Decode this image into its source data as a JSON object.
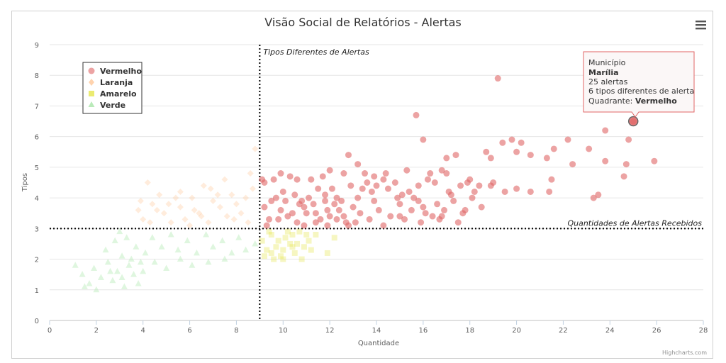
{
  "chart_data": {
    "type": "scatter",
    "title": "Visão Social de Relatórios - Alertas",
    "xlabel": "Quantidade",
    "ylabel": "Tipos",
    "xlim": [
      0,
      28
    ],
    "ylim": [
      0,
      9
    ],
    "x_ticks": [
      "0",
      "2",
      "4",
      "6",
      "8",
      "10",
      "12",
      "14",
      "16",
      "18",
      "20",
      "22",
      "24",
      "26",
      "28"
    ],
    "y_ticks": [
      "0",
      "1",
      "2",
      "3",
      "4",
      "5",
      "6",
      "7",
      "8",
      "9"
    ],
    "grid": "horizontal",
    "legend_position": "top-left",
    "plot_lines": [
      {
        "axis": "x",
        "value": 9,
        "label": "Tipos Diferentes de Alertas"
      },
      {
        "axis": "y",
        "value": 3,
        "label": "Quantidades de Alertas Recebidos"
      }
    ],
    "series": [
      {
        "name": "Vermelho",
        "color": "#e06666",
        "marker": "circle",
        "points": [
          [
            9.1,
            4.6
          ],
          [
            9.2,
            4.5
          ],
          [
            9.6,
            4.6
          ],
          [
            9.9,
            4.8
          ],
          [
            10.3,
            4.7
          ],
          [
            10.6,
            4.6
          ],
          [
            11.2,
            4.6
          ],
          [
            11.7,
            4.7
          ],
          [
            12.0,
            4.9
          ],
          [
            12.6,
            4.8
          ],
          [
            12.8,
            5.4
          ],
          [
            13.2,
            5.1
          ],
          [
            13.5,
            4.8
          ],
          [
            13.9,
            4.7
          ],
          [
            14.4,
            4.8
          ],
          [
            15.3,
            4.9
          ],
          [
            15.7,
            6.7
          ],
          [
            15.8,
            4.4
          ],
          [
            16.0,
            5.9
          ],
          [
            16.3,
            4.8
          ],
          [
            16.8,
            4.9
          ],
          [
            17.0,
            5.3
          ],
          [
            17.4,
            5.4
          ],
          [
            17.9,
            4.5
          ],
          [
            18.7,
            5.5
          ],
          [
            18.9,
            5.3
          ],
          [
            19.2,
            7.9
          ],
          [
            19.4,
            5.8
          ],
          [
            19.8,
            5.9
          ],
          [
            20.0,
            5.5
          ],
          [
            20.2,
            5.8
          ],
          [
            20.6,
            5.4
          ],
          [
            21.3,
            5.3
          ],
          [
            21.6,
            5.6
          ],
          [
            22.2,
            5.9
          ],
          [
            22.4,
            5.1
          ],
          [
            23.1,
            5.6
          ],
          [
            23.8,
            6.2
          ],
          [
            23.8,
            5.2
          ],
          [
            24.7,
            5.1
          ],
          [
            24.8,
            5.9
          ],
          [
            25.0,
            6.5
          ],
          [
            25.9,
            5.2
          ],
          [
            24.6,
            4.7
          ],
          [
            23.5,
            4.1
          ],
          [
            23.3,
            4.0
          ],
          [
            21.5,
            4.6
          ],
          [
            21.4,
            4.2
          ],
          [
            20.6,
            4.2
          ],
          [
            20.0,
            4.3
          ],
          [
            19.5,
            4.2
          ],
          [
            18.9,
            4.4
          ],
          [
            18.2,
            4.2
          ],
          [
            17.6,
            4.4
          ],
          [
            17.2,
            4.1
          ],
          [
            16.6,
            3.8
          ],
          [
            16.1,
            3.5
          ],
          [
            15.5,
            3.6
          ],
          [
            15.0,
            3.4
          ],
          [
            14.3,
            3.1
          ],
          [
            13.7,
            3.3
          ],
          [
            13.3,
            3.5
          ],
          [
            12.8,
            3.1
          ],
          [
            12.3,
            3.3
          ],
          [
            11.9,
            3.6
          ],
          [
            11.4,
            3.2
          ],
          [
            10.9,
            3.7
          ],
          [
            10.6,
            3.2
          ],
          [
            10.2,
            3.4
          ],
          [
            9.8,
            3.3
          ],
          [
            9.4,
            3.3
          ],
          [
            9.2,
            3.7
          ],
          [
            9.5,
            3.9
          ],
          [
            10.0,
            4.2
          ],
          [
            10.4,
            3.5
          ],
          [
            10.8,
            3.9
          ],
          [
            11.1,
            4.0
          ],
          [
            11.5,
            4.3
          ],
          [
            11.8,
            4.1
          ],
          [
            12.2,
            3.8
          ],
          [
            12.5,
            3.9
          ],
          [
            12.9,
            4.4
          ],
          [
            13.4,
            4.3
          ],
          [
            13.8,
            4.2
          ],
          [
            14.1,
            3.6
          ],
          [
            14.6,
            3.4
          ],
          [
            15.0,
            3.8
          ],
          [
            15.4,
            4.2
          ],
          [
            15.9,
            3.2
          ],
          [
            16.4,
            3.4
          ],
          [
            16.9,
            3.6
          ],
          [
            17.3,
            3.9
          ],
          [
            17.7,
            3.5
          ],
          [
            18.1,
            4.0
          ],
          [
            18.5,
            3.7
          ],
          [
            11.0,
            3.5
          ],
          [
            11.3,
            3.8
          ],
          [
            11.6,
            3.3
          ],
          [
            12.1,
            4.3
          ],
          [
            12.4,
            3.6
          ],
          [
            12.7,
            3.2
          ],
          [
            13.0,
            3.7
          ],
          [
            13.6,
            4.5
          ],
          [
            14.0,
            4.4
          ],
          [
            14.8,
            4.5
          ],
          [
            15.2,
            3.3
          ],
          [
            15.6,
            4.0
          ],
          [
            16.2,
            4.6
          ],
          [
            16.7,
            3.3
          ],
          [
            17.1,
            4.2
          ],
          [
            17.5,
            3.2
          ],
          [
            18.0,
            4.6
          ],
          [
            18.4,
            4.4
          ],
          [
            19.0,
            4.5
          ],
          [
            9.7,
            4.0
          ],
          [
            10.1,
            3.9
          ],
          [
            10.5,
            4.1
          ],
          [
            10.7,
            3.8
          ],
          [
            11.9,
            3.1
          ],
          [
            12.0,
            3.4
          ],
          [
            12.3,
            4.0
          ],
          [
            13.1,
            3.2
          ],
          [
            13.9,
            3.9
          ],
          [
            14.3,
            4.6
          ],
          [
            14.9,
            4.0
          ],
          [
            15.8,
            3.9
          ],
          [
            16.5,
            4.5
          ],
          [
            17.0,
            4.8
          ],
          [
            17.8,
            3.6
          ],
          [
            9.3,
            3.1
          ],
          [
            9.9,
            3.6
          ],
          [
            10.9,
            3.1
          ],
          [
            11.4,
            3.5
          ],
          [
            11.8,
            3.9
          ],
          [
            12.6,
            3.4
          ],
          [
            13.2,
            4.0
          ],
          [
            14.5,
            4.3
          ],
          [
            15.1,
            4.1
          ],
          [
            16.0,
            3.7
          ],
          [
            16.8,
            3.4
          ]
        ]
      },
      {
        "name": "Laranja",
        "color": "#ffc89a",
        "marker": "diamond",
        "points": [
          [
            3.9,
            3.9
          ],
          [
            4.2,
            4.5
          ],
          [
            4.6,
            3.6
          ],
          [
            5.1,
            3.8
          ],
          [
            5.6,
            4.2
          ],
          [
            6.1,
            4.0
          ],
          [
            6.5,
            3.4
          ],
          [
            6.9,
            4.3
          ],
          [
            7.3,
            3.7
          ],
          [
            7.8,
            4.1
          ],
          [
            8.2,
            3.5
          ],
          [
            8.6,
            4.8
          ],
          [
            8.8,
            5.6
          ],
          [
            8.4,
            4.0
          ],
          [
            7.9,
            3.3
          ],
          [
            7.5,
            4.6
          ],
          [
            7.0,
            3.9
          ],
          [
            6.6,
            4.4
          ],
          [
            6.2,
            3.6
          ],
          [
            5.8,
            3.3
          ],
          [
            5.4,
            4.0
          ],
          [
            4.9,
            3.5
          ],
          [
            4.4,
            3.8
          ],
          [
            4.0,
            3.3
          ],
          [
            3.8,
            3.6
          ],
          [
            5.2,
            3.2
          ],
          [
            6.0,
            3.1
          ],
          [
            6.8,
            3.2
          ],
          [
            7.6,
            3.4
          ],
          [
            8.0,
            3.8
          ],
          [
            8.5,
            3.2
          ],
          [
            8.7,
            4.3
          ],
          [
            7.2,
            4.1
          ],
          [
            6.4,
            3.5
          ],
          [
            5.6,
            3.7
          ],
          [
            4.7,
            4.1
          ],
          [
            4.3,
            3.2
          ]
        ]
      },
      {
        "name": "Amarelo",
        "color": "#e6e64d",
        "marker": "square",
        "points": [
          [
            9.1,
            2.6
          ],
          [
            9.3,
            2.3
          ],
          [
            9.5,
            2.8
          ],
          [
            9.7,
            2.4
          ],
          [
            9.9,
            2.1
          ],
          [
            10.1,
            2.7
          ],
          [
            10.3,
            2.5
          ],
          [
            10.5,
            2.2
          ],
          [
            10.7,
            2.9
          ],
          [
            10.9,
            2.4
          ],
          [
            11.1,
            2.6
          ],
          [
            11.4,
            2.8
          ],
          [
            11.9,
            2.2
          ],
          [
            12.2,
            2.7
          ],
          [
            9.2,
            2.1
          ],
          [
            9.6,
            2.0
          ],
          [
            10.0,
            2.3
          ],
          [
            10.4,
            2.8
          ],
          [
            10.8,
            2.0
          ],
          [
            11.2,
            2.3
          ],
          [
            9.4,
            2.9
          ],
          [
            9.8,
            2.6
          ],
          [
            10.2,
            2.9
          ],
          [
            10.6,
            2.5
          ],
          [
            11.0,
            2.8
          ],
          [
            9.5,
            2.2
          ],
          [
            10.0,
            2.0
          ],
          [
            10.4,
            2.4
          ]
        ]
      },
      {
        "name": "Verde",
        "color": "#b9eab9",
        "marker": "triangle",
        "points": [
          [
            1.1,
            1.8
          ],
          [
            1.4,
            1.5
          ],
          [
            1.7,
            1.2
          ],
          [
            1.9,
            1.7
          ],
          [
            2.2,
            1.4
          ],
          [
            2.5,
            1.9
          ],
          [
            2.7,
            1.3
          ],
          [
            2.9,
            1.6
          ],
          [
            3.2,
            1.1
          ],
          [
            3.4,
            1.8
          ],
          [
            3.6,
            1.5
          ],
          [
            3.8,
            1.2
          ],
          [
            3.9,
            1.9
          ],
          [
            2.4,
            2.3
          ],
          [
            2.8,
            2.6
          ],
          [
            3.1,
            2.1
          ],
          [
            3.3,
            2.7
          ],
          [
            3.7,
            2.4
          ],
          [
            4.1,
            2.2
          ],
          [
            4.4,
            2.7
          ],
          [
            4.8,
            2.4
          ],
          [
            5.2,
            2.8
          ],
          [
            5.5,
            2.3
          ],
          [
            5.9,
            2.6
          ],
          [
            6.3,
            2.2
          ],
          [
            6.7,
            2.8
          ],
          [
            7.0,
            2.4
          ],
          [
            7.4,
            2.6
          ],
          [
            7.8,
            2.2
          ],
          [
            8.1,
            2.7
          ],
          [
            8.4,
            2.3
          ],
          [
            8.8,
            2.5
          ],
          [
            4.0,
            1.6
          ],
          [
            4.5,
            1.9
          ],
          [
            5.0,
            1.7
          ],
          [
            5.6,
            2.0
          ],
          [
            6.1,
            1.8
          ],
          [
            6.8,
            1.9
          ],
          [
            7.5,
            2.0
          ],
          [
            1.5,
            1.1
          ],
          [
            2.0,
            1.0
          ],
          [
            3.0,
            2.9
          ],
          [
            3.5,
            2.0
          ],
          [
            2.6,
            1.6
          ],
          [
            3.1,
            1.4
          ]
        ]
      }
    ],
    "highlight": {
      "series": "Vermelho",
      "x": 25.0,
      "y": 6.5
    }
  },
  "tooltip": {
    "line1": "Município",
    "line2": "Marília",
    "line3": "25 alertas",
    "line4": "6 tipos diferentes de alerta",
    "line5_label": "Quadrante: ",
    "line5_value": "Vermelho"
  },
  "menu_icon": "hamburger-menu-icon",
  "credits": "Highcharts.com"
}
